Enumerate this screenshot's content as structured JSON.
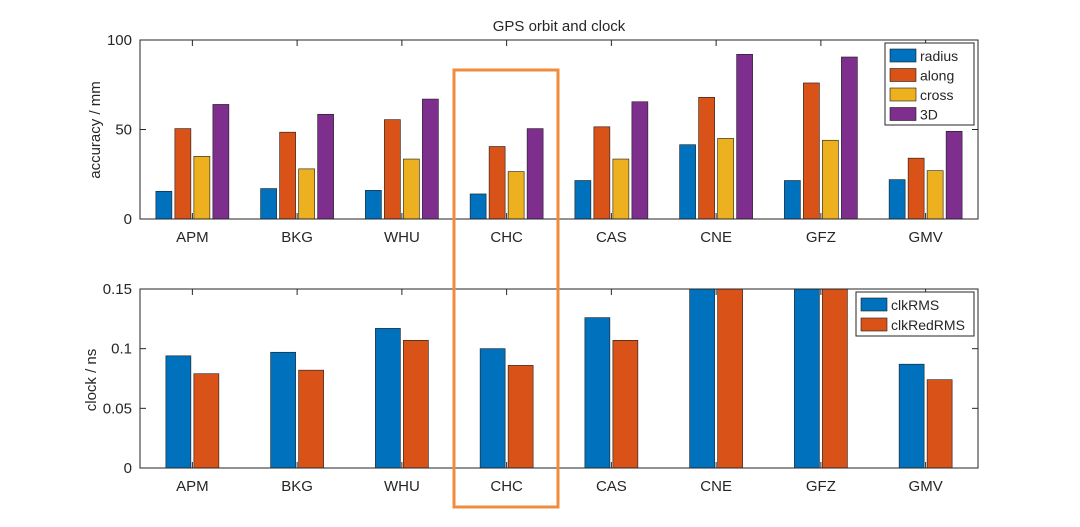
{
  "colors": {
    "radius": "#0072BD",
    "along": "#D95319",
    "cross": "#EDB120",
    "3D": "#7E2F8E",
    "clkRMS": "#0072BD",
    "clkRedRMS": "#D95319",
    "highlight": "#F28C3C",
    "axis": "#262626",
    "background": "#ffffff"
  },
  "chart_data": [
    {
      "type": "bar",
      "title": "GPS orbit and clock",
      "xlabel": "",
      "ylabel": "accuracy / mm",
      "ylim": [
        0,
        100
      ],
      "yticks": [
        "0",
        "50",
        "100"
      ],
      "ytick_values": [
        0,
        50,
        100
      ],
      "categories": [
        "APM",
        "BKG",
        "WHU",
        "CHC",
        "CAS",
        "CNE",
        "GFZ",
        "GMV"
      ],
      "series": [
        {
          "name": "radius",
          "values": [
            15.5,
            17,
            16,
            14,
            21.5,
            41.5,
            21.5,
            22
          ]
        },
        {
          "name": "along",
          "values": [
            50.5,
            48.5,
            55.5,
            40.5,
            51.5,
            68,
            76,
            34
          ]
        },
        {
          "name": "cross",
          "values": [
            35,
            28,
            33.5,
            26.5,
            33.5,
            45,
            44,
            27
          ]
        },
        {
          "name": "3D",
          "values": [
            64,
            58.5,
            67,
            50.5,
            65.5,
            92,
            90.5,
            49
          ]
        }
      ],
      "legend": "top-right",
      "highlight_category": "CHC"
    },
    {
      "type": "bar",
      "title": "",
      "xlabel": "",
      "ylabel": "clock / ns",
      "ylim": [
        0,
        0.15
      ],
      "yticks": [
        "0",
        "0.05",
        "0.1",
        "0.15"
      ],
      "ytick_values": [
        0,
        0.05,
        0.1,
        0.15
      ],
      "categories": [
        "APM",
        "BKG",
        "WHU",
        "CHC",
        "CAS",
        "CNE",
        "GFZ",
        "GMV"
      ],
      "series": [
        {
          "name": "clkRMS",
          "values": [
            0.094,
            0.097,
            0.117,
            0.1,
            0.126,
            0.15,
            0.15,
            0.087
          ]
        },
        {
          "name": "clkRedRMS",
          "values": [
            0.079,
            0.082,
            0.107,
            0.086,
            0.107,
            0.15,
            0.15,
            0.074
          ]
        }
      ],
      "legend": "top-right",
      "highlight_category": "CHC"
    }
  ]
}
